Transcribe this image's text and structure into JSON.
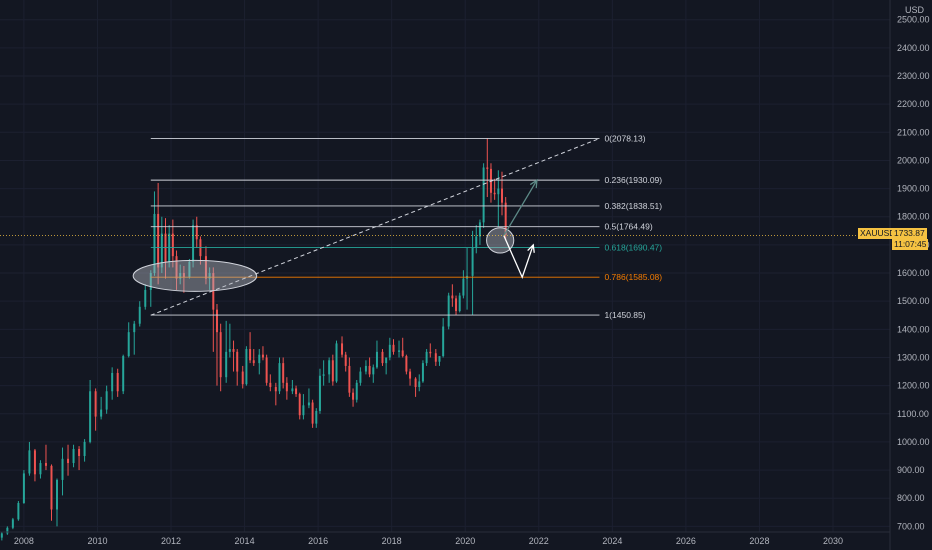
{
  "chart_data": {
    "type": "candlestick",
    "symbol": "XAUUSD",
    "currency": "USD",
    "last_price": "1733.87",
    "countdown": "11:07:45",
    "x_ticks": [
      "2008",
      "2010",
      "2012",
      "2014",
      "2016",
      "2018",
      "2020",
      "2022",
      "2024",
      "2026",
      "2028",
      "2030"
    ],
    "x_range": [
      2007.35,
      2031.55
    ],
    "y_range": [
      680,
      2570
    ],
    "y_ticks": [
      "700.00",
      "800.00",
      "900.00",
      "1000.00",
      "1100.00",
      "1200.00",
      "1300.00",
      "1400.00",
      "1500.00",
      "1600.00",
      "1700.00",
      "1800.00",
      "1900.00",
      "2000.00",
      "2100.00",
      "2200.00",
      "2300.00",
      "2400.00",
      "2500.00"
    ],
    "fib_levels": [
      {
        "label": "0(2078.13)",
        "value": 2078.13,
        "color": "#d1d4dc",
        "x_start": 2011.45
      },
      {
        "label": "0.236(1930.09)",
        "value": 1930.09,
        "color": "#d1d4dc",
        "x_start": 2011.45
      },
      {
        "label": "0.382(1838.51)",
        "value": 1838.51,
        "color": "#d1d4dc",
        "x_start": 2011.45
      },
      {
        "label": "0.5(1764.49)",
        "value": 1764.49,
        "color": "#d1d4dc",
        "x_start": 2011.45
      },
      {
        "label": "0.618(1690.47)",
        "value": 1690.47,
        "color": "#26a69a",
        "x_start": 2011.45
      },
      {
        "label": "0.786(1585.08)",
        "value": 1585.08,
        "color": "#f57c00",
        "x_start": 2011.45
      },
      {
        "label": "1(1450.85)",
        "value": 1450.85,
        "color": "#d1d4dc",
        "x_start": 2011.45
      }
    ],
    "fib_x_end": 2023.65,
    "trendline": {
      "x1": 2011.45,
      "y1": 1450,
      "x2": 2023.65,
      "y2": 2078
    },
    "ellipses": [
      {
        "cx": 2012.65,
        "cy": 1590,
        "rx_years": 1.68,
        "ry_price": 55
      },
      {
        "cx": 2020.95,
        "cy": 1716,
        "rx_years": 0.37,
        "ry_price": 45
      }
    ],
    "arrows": [
      {
        "color": "#5d8a87",
        "points": [
          [
            2021.05,
            1733
          ],
          [
            2021.95,
            1930
          ]
        ]
      },
      {
        "color": "#ffffff",
        "points": [
          [
            2021.05,
            1733
          ],
          [
            2021.55,
            1585
          ],
          [
            2021.85,
            1700
          ]
        ]
      }
    ],
    "colors": {
      "up": "#26a69a",
      "down": "#ef5350",
      "background": "#131722",
      "price_line": "#f5c242"
    },
    "candles": [
      [
        2007.4,
        660,
        680,
        650,
        675
      ],
      [
        2007.55,
        675,
        700,
        670,
        695
      ],
      [
        2007.7,
        695,
        730,
        690,
        725
      ],
      [
        2007.85,
        725,
        790,
        720,
        783
      ],
      [
        2008.0,
        783,
        900,
        780,
        888
      ],
      [
        2008.15,
        888,
        1000,
        880,
        970
      ],
      [
        2008.3,
        970,
        975,
        860,
        885
      ],
      [
        2008.45,
        885,
        935,
        870,
        925
      ],
      [
        2008.6,
        925,
        990,
        900,
        915
      ],
      [
        2008.75,
        915,
        920,
        720,
        760
      ],
      [
        2008.9,
        760,
        870,
        700,
        865
      ],
      [
        2009.05,
        865,
        980,
        810,
        940
      ],
      [
        2009.2,
        940,
        990,
        880,
        925
      ],
      [
        2009.35,
        925,
        990,
        910,
        975
      ],
      [
        2009.5,
        975,
        985,
        900,
        950
      ],
      [
        2009.65,
        950,
        1010,
        930,
        1000
      ],
      [
        2009.8,
        1000,
        1220,
        995,
        1180
      ],
      [
        2009.95,
        1180,
        1190,
        1040,
        1090
      ],
      [
        2010.1,
        1090,
        1160,
        1080,
        1115
      ],
      [
        2010.25,
        1115,
        1200,
        1100,
        1180
      ],
      [
        2010.4,
        1180,
        1265,
        1150,
        1245
      ],
      [
        2010.55,
        1245,
        1260,
        1160,
        1180
      ],
      [
        2010.7,
        1180,
        1310,
        1170,
        1305
      ],
      [
        2010.85,
        1305,
        1425,
        1300,
        1390
      ],
      [
        2011.0,
        1390,
        1430,
        1310,
        1420
      ],
      [
        2011.15,
        1420,
        1500,
        1410,
        1480
      ],
      [
        2011.3,
        1480,
        1560,
        1470,
        1540
      ],
      [
        2011.45,
        1540,
        1610,
        1480,
        1600
      ],
      [
        2011.55,
        1600,
        1890,
        1590,
        1810
      ],
      [
        2011.65,
        1810,
        1920,
        1560,
        1620
      ],
      [
        2011.75,
        1620,
        1800,
        1600,
        1740
      ],
      [
        2011.85,
        1740,
        1795,
        1580,
        1640
      ],
      [
        2011.95,
        1640,
        1770,
        1620,
        1740
      ],
      [
        2012.05,
        1740,
        1790,
        1620,
        1660
      ],
      [
        2012.15,
        1660,
        1680,
        1540,
        1580
      ],
      [
        2012.25,
        1580,
        1630,
        1560,
        1600
      ],
      [
        2012.35,
        1600,
        1625,
        1530,
        1585
      ],
      [
        2012.5,
        1585,
        1650,
        1580,
        1640
      ],
      [
        2012.6,
        1640,
        1790,
        1620,
        1770
      ],
      [
        2012.7,
        1770,
        1800,
        1690,
        1720
      ],
      [
        2012.8,
        1720,
        1730,
        1630,
        1660
      ],
      [
        2012.95,
        1660,
        1695,
        1560,
        1580
      ],
      [
        2013.05,
        1580,
        1620,
        1540,
        1600
      ],
      [
        2013.15,
        1600,
        1620,
        1320,
        1470
      ],
      [
        2013.25,
        1470,
        1490,
        1200,
        1390
      ],
      [
        2013.35,
        1390,
        1420,
        1180,
        1230
      ],
      [
        2013.5,
        1230,
        1430,
        1210,
        1320
      ],
      [
        2013.6,
        1320,
        1420,
        1300,
        1330
      ],
      [
        2013.7,
        1330,
        1360,
        1250,
        1320
      ],
      [
        2013.8,
        1320,
        1330,
        1200,
        1250
      ],
      [
        2013.95,
        1250,
        1270,
        1190,
        1205
      ],
      [
        2014.05,
        1205,
        1340,
        1200,
        1330
      ],
      [
        2014.15,
        1330,
        1390,
        1280,
        1290
      ],
      [
        2014.25,
        1290,
        1330,
        1270,
        1280
      ],
      [
        2014.4,
        1280,
        1330,
        1240,
        1310
      ],
      [
        2014.5,
        1310,
        1340,
        1290,
        1300
      ],
      [
        2014.6,
        1300,
        1310,
        1200,
        1210
      ],
      [
        2014.7,
        1210,
        1240,
        1180,
        1195
      ],
      [
        2014.85,
        1195,
        1210,
        1130,
        1180
      ],
      [
        2014.95,
        1180,
        1300,
        1170,
        1280
      ],
      [
        2015.05,
        1280,
        1300,
        1190,
        1210
      ],
      [
        2015.15,
        1210,
        1230,
        1150,
        1180
      ],
      [
        2015.3,
        1180,
        1220,
        1170,
        1190
      ],
      [
        2015.4,
        1190,
        1200,
        1160,
        1170
      ],
      [
        2015.5,
        1170,
        1175,
        1080,
        1095
      ],
      [
        2015.6,
        1095,
        1170,
        1080,
        1130
      ],
      [
        2015.75,
        1130,
        1190,
        1120,
        1140
      ],
      [
        2015.85,
        1140,
        1150,
        1050,
        1065
      ],
      [
        2015.95,
        1065,
        1120,
        1050,
        1110
      ],
      [
        2016.05,
        1110,
        1260,
        1100,
        1235
      ],
      [
        2016.15,
        1235,
        1290,
        1200,
        1240
      ],
      [
        2016.3,
        1240,
        1300,
        1210,
        1290
      ],
      [
        2016.4,
        1290,
        1310,
        1200,
        1215
      ],
      [
        2016.5,
        1215,
        1360,
        1210,
        1350
      ],
      [
        2016.65,
        1350,
        1375,
        1300,
        1310
      ],
      [
        2016.75,
        1310,
        1320,
        1250,
        1270
      ],
      [
        2016.85,
        1270,
        1300,
        1160,
        1175
      ],
      [
        2016.95,
        1175,
        1190,
        1125,
        1150
      ],
      [
        2017.05,
        1150,
        1220,
        1140,
        1210
      ],
      [
        2017.15,
        1210,
        1265,
        1200,
        1250
      ],
      [
        2017.3,
        1250,
        1290,
        1240,
        1270
      ],
      [
        2017.4,
        1270,
        1300,
        1230,
        1240
      ],
      [
        2017.5,
        1240,
        1275,
        1210,
        1265
      ],
      [
        2017.6,
        1265,
        1360,
        1260,
        1320
      ],
      [
        2017.75,
        1320,
        1330,
        1270,
        1280
      ],
      [
        2017.85,
        1280,
        1300,
        1240,
        1300
      ],
      [
        2017.95,
        1300,
        1370,
        1290,
        1345
      ],
      [
        2018.05,
        1345,
        1365,
        1310,
        1320
      ],
      [
        2018.2,
        1320,
        1360,
        1300,
        1325
      ],
      [
        2018.3,
        1325,
        1370,
        1300,
        1305
      ],
      [
        2018.4,
        1305,
        1310,
        1240,
        1250
      ],
      [
        2018.5,
        1250,
        1260,
        1200,
        1225
      ],
      [
        2018.65,
        1225,
        1230,
        1160,
        1195
      ],
      [
        2018.75,
        1195,
        1240,
        1180,
        1215
      ],
      [
        2018.85,
        1215,
        1290,
        1210,
        1280
      ],
      [
        2018.95,
        1280,
        1330,
        1270,
        1320
      ],
      [
        2019.05,
        1320,
        1350,
        1300,
        1315
      ],
      [
        2019.2,
        1315,
        1330,
        1270,
        1285
      ],
      [
        2019.3,
        1285,
        1300,
        1270,
        1305
      ],
      [
        2019.4,
        1305,
        1440,
        1300,
        1410
      ],
      [
        2019.55,
        1410,
        1530,
        1400,
        1520
      ],
      [
        2019.65,
        1520,
        1560,
        1480,
        1510
      ],
      [
        2019.75,
        1510,
        1520,
        1450,
        1465
      ],
      [
        2019.85,
        1465,
        1530,
        1460,
        1520
      ],
      [
        2019.95,
        1520,
        1610,
        1510,
        1580
      ],
      [
        2020.05,
        1580,
        1690,
        1470,
        1590
      ],
      [
        2020.2,
        1590,
        1750,
        1450,
        1690
      ],
      [
        2020.3,
        1690,
        1770,
        1670,
        1730
      ],
      [
        2020.4,
        1730,
        1790,
        1700,
        1780
      ],
      [
        2020.5,
        1780,
        1990,
        1760,
        1975
      ],
      [
        2020.6,
        1975,
        2078,
        1870,
        1970
      ],
      [
        2020.7,
        1970,
        1990,
        1850,
        1885
      ],
      [
        2020.8,
        1885,
        1935,
        1860,
        1880
      ],
      [
        2020.9,
        1880,
        1965,
        1765,
        1900
      ],
      [
        2021.0,
        1900,
        1960,
        1805,
        1850
      ],
      [
        2021.1,
        1850,
        1870,
        1715,
        1735
      ]
    ]
  }
}
